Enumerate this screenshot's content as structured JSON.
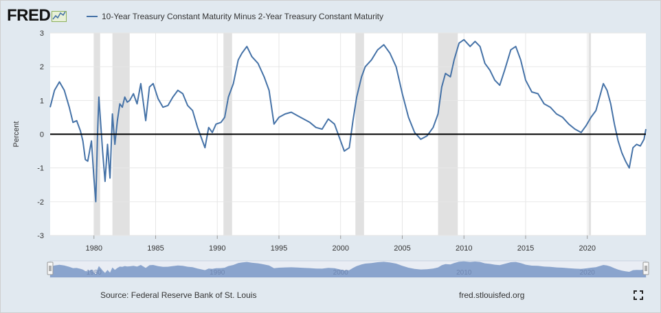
{
  "header": {
    "logo_text": "FRED",
    "logo_icon": "fred-sparkline-logo-icon",
    "series_title": "10-Year Treasury Constant Maturity Minus 2-Year Treasury Constant Maturity"
  },
  "footer": {
    "source": "Source: Federal Reserve Bank of St. Louis",
    "url": "fred.stlouisfed.org",
    "fullscreen_icon": "fullscreen-expand-icon"
  },
  "colors": {
    "line": "#4572a7",
    "recession": "#e1e1e1",
    "zero_line": "#000000",
    "frame_bg": "#e1e9f0",
    "navigator_fill": "#7f9bc9"
  },
  "chart_data": {
    "type": "line",
    "title": "10-Year Treasury Constant Maturity Minus 2-Year Treasury Constant Maturity",
    "xlabel": "",
    "ylabel": "Percent",
    "xlim": [
      1976.45,
      2024.75
    ],
    "ylim": [
      -3,
      3
    ],
    "x_ticks": [
      "1980",
      "1985",
      "1990",
      "1995",
      "2000",
      "2005",
      "2010",
      "2015",
      "2020"
    ],
    "y_ticks": [
      "3",
      "2",
      "1",
      "0",
      "-1",
      "-2",
      "-3"
    ],
    "grid": true,
    "reference_line_y": 0,
    "recessions": [
      [
        1980.0,
        1980.5
      ],
      [
        1981.5,
        1982.9
      ],
      [
        1990.5,
        1991.2
      ],
      [
        2001.2,
        2001.9
      ],
      [
        2007.9,
        2009.5
      ],
      [
        2020.1,
        2020.3
      ]
    ],
    "series": [
      {
        "name": "10-Year Treasury Constant Maturity Minus 2-Year Treasury Constant Maturity",
        "x": [
          1976.45,
          1976.8,
          1977.2,
          1977.6,
          1978.0,
          1978.3,
          1978.6,
          1978.9,
          1979.1,
          1979.3,
          1979.5,
          1979.8,
          1980.0,
          1980.15,
          1980.3,
          1980.4,
          1980.55,
          1980.7,
          1980.9,
          1981.1,
          1981.3,
          1981.5,
          1981.7,
          1981.9,
          1982.1,
          1982.3,
          1982.5,
          1982.7,
          1982.9,
          1983.2,
          1983.5,
          1983.8,
          1984.2,
          1984.5,
          1984.8,
          1985.2,
          1985.6,
          1986.0,
          1986.4,
          1986.8,
          1987.2,
          1987.6,
          1988.0,
          1988.4,
          1988.7,
          1989.0,
          1989.3,
          1989.6,
          1989.9,
          1990.3,
          1990.6,
          1990.9,
          1991.3,
          1991.7,
          1992.0,
          1992.4,
          1992.8,
          1993.3,
          1993.8,
          1994.2,
          1994.6,
          1995.0,
          1995.5,
          1996.0,
          1996.5,
          1997.0,
          1997.5,
          1998.0,
          1998.5,
          1999.0,
          1999.5,
          2000.0,
          2000.3,
          2000.7,
          2001.0,
          2001.3,
          2001.7,
          2002.0,
          2002.5,
          2003.0,
          2003.5,
          2004.0,
          2004.5,
          2005.0,
          2005.5,
          2006.0,
          2006.5,
          2007.0,
          2007.5,
          2007.9,
          2008.2,
          2008.5,
          2008.9,
          2009.2,
          2009.6,
          2010.0,
          2010.5,
          2010.9,
          2011.3,
          2011.7,
          2012.1,
          2012.5,
          2012.9,
          2013.3,
          2013.8,
          2014.2,
          2014.6,
          2015.0,
          2015.5,
          2016.0,
          2016.5,
          2017.0,
          2017.5,
          2018.0,
          2018.5,
          2019.0,
          2019.5,
          2019.9,
          2020.3,
          2020.7,
          2021.0,
          2021.3,
          2021.6,
          2021.9,
          2022.2,
          2022.5,
          2022.8,
          2023.1,
          2023.4,
          2023.7,
          2024.0,
          2024.3,
          2024.6,
          2024.75
        ],
        "values": [
          0.8,
          1.3,
          1.55,
          1.3,
          0.8,
          0.35,
          0.4,
          0.1,
          -0.2,
          -0.75,
          -0.8,
          -0.2,
          -1.3,
          -2.0,
          0.1,
          1.1,
          0.3,
          -0.5,
          -1.4,
          -0.3,
          -1.3,
          0.6,
          -0.3,
          0.4,
          0.9,
          0.8,
          1.1,
          0.95,
          1.0,
          1.2,
          0.9,
          1.5,
          0.4,
          1.4,
          1.5,
          1.05,
          0.8,
          0.85,
          1.1,
          1.3,
          1.2,
          0.85,
          0.7,
          0.2,
          -0.1,
          -0.4,
          0.2,
          0.05,
          0.3,
          0.35,
          0.5,
          1.1,
          1.5,
          2.2,
          2.4,
          2.6,
          2.3,
          2.1,
          1.7,
          1.3,
          0.3,
          0.5,
          0.6,
          0.65,
          0.55,
          0.45,
          0.35,
          0.2,
          0.15,
          0.45,
          0.3,
          -0.2,
          -0.5,
          -0.4,
          0.4,
          1.1,
          1.7,
          2.0,
          2.2,
          2.5,
          2.65,
          2.4,
          2.0,
          1.2,
          0.5,
          0.05,
          -0.15,
          -0.05,
          0.2,
          0.6,
          1.4,
          1.8,
          1.7,
          2.2,
          2.7,
          2.8,
          2.6,
          2.75,
          2.6,
          2.1,
          1.9,
          1.6,
          1.45,
          1.9,
          2.5,
          2.6,
          2.2,
          1.6,
          1.25,
          1.2,
          0.9,
          0.8,
          0.6,
          0.5,
          0.3,
          0.15,
          0.05,
          0.25,
          0.5,
          0.7,
          1.1,
          1.5,
          1.3,
          0.9,
          0.3,
          -0.2,
          -0.55,
          -0.8,
          -1.0,
          -0.4,
          -0.3,
          -0.35,
          -0.15,
          0.15
        ]
      }
    ]
  }
}
